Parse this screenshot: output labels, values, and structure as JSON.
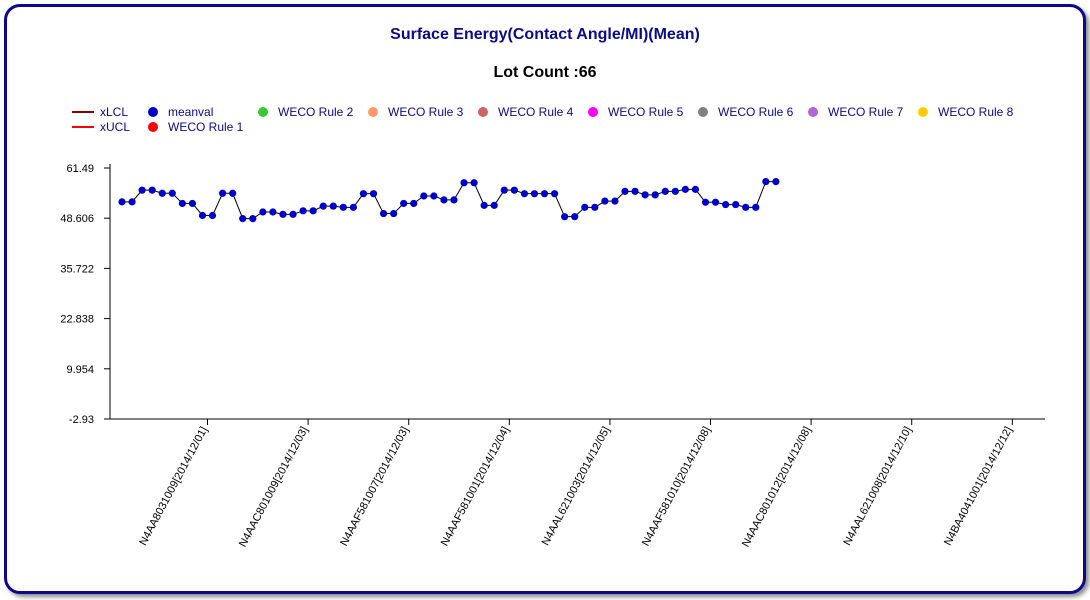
{
  "chart_data": {
    "type": "line",
    "title": "Surface Energy(Contact Angle/MI)(Mean)",
    "subtitle": "Lot Count :66",
    "ylim": [
      -2.93,
      61.49
    ],
    "y_ticks": [
      "61.49",
      "48.606",
      "35.722",
      "22.838",
      "9.954",
      "-2.93"
    ],
    "x_tick_labels": [
      "N4AA8031009[2014/12/01]",
      "N4AAC801009[2014/12/03]",
      "N4AAF581007[2014/12/03]",
      "N4AAF581001[2014/12/04]",
      "N4AAL621003[2014/12/05]",
      "N4AAF581010[2014/12/08]",
      "N4AAC801012[2014/12/08]",
      "N4AAL621008[2014/12/10]",
      "N4BA4041001[2014/12/12]"
    ],
    "legend": [
      {
        "name": "xLCL",
        "kind": "line",
        "color": "#8b0000"
      },
      {
        "name": "meanval",
        "kind": "dot",
        "color": "#0000cc"
      },
      {
        "name": "WECO Rule 2",
        "kind": "dot",
        "color": "#33cc33"
      },
      {
        "name": "WECO Rule 3",
        "kind": "dot",
        "color": "#ff9966"
      },
      {
        "name": "WECO Rule 4",
        "kind": "dot",
        "color": "#cc6666"
      },
      {
        "name": "WECO Rule 5",
        "kind": "dot",
        "color": "#ff00ff"
      },
      {
        "name": "WECO Rule 6",
        "kind": "dot",
        "color": "#808080"
      },
      {
        "name": "WECO Rule 7",
        "kind": "dot",
        "color": "#b266d9"
      },
      {
        "name": "WECO Rule 8",
        "kind": "dot",
        "color": "#ffcc00"
      },
      {
        "name": "xUCL",
        "kind": "line",
        "color": "#ff0000"
      },
      {
        "name": "WECO Rule 1",
        "kind": "dot",
        "color": "#ff0000"
      }
    ],
    "series": [
      {
        "name": "meanval",
        "color": "#0000cc",
        "values": [
          52.8,
          52.8,
          55.8,
          55.8,
          55.0,
          55.0,
          52.4,
          52.4,
          49.3,
          49.3,
          55.0,
          55.0,
          48.5,
          48.5,
          50.2,
          50.2,
          49.6,
          49.6,
          50.5,
          50.5,
          51.7,
          51.7,
          51.4,
          51.4,
          54.9,
          54.9,
          49.8,
          49.8,
          52.4,
          52.4,
          54.3,
          54.3,
          53.3,
          53.3,
          57.7,
          57.7,
          51.9,
          51.9,
          55.8,
          55.8,
          54.9,
          54.9,
          54.9,
          54.9,
          49.0,
          49.0,
          51.4,
          51.4,
          53.0,
          53.0,
          55.5,
          55.5,
          54.6,
          54.6,
          55.5,
          55.5,
          56.0,
          56.0,
          52.7,
          52.7,
          52.1,
          52.1,
          51.4,
          51.4,
          58.0,
          58.0
        ]
      }
    ]
  }
}
